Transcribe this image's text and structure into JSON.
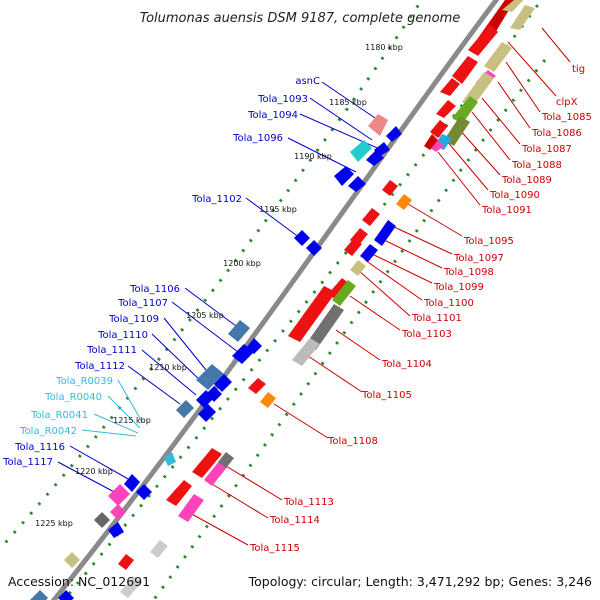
{
  "title": "Tolumonas auensis DSM 9187, complete genome",
  "accession": "Accession: NC_012691",
  "topology_info": "Topology: circular; Length: 3,471,292 bp; Genes: 3,246",
  "colors": {
    "left_label": "#0000cc",
    "right_label": "#cc0000",
    "rna_label": "#33bbdd",
    "backbone": "#888888",
    "tick_dots": "#2a8a2a"
  },
  "kbp_ticks": [
    "1180 kbp",
    "1185 kbp",
    "1190 kbp",
    "1195 kbp",
    "1200 kbp",
    "1205 kbp",
    "1210 kbp",
    "1215 kbp",
    "1220 kbp",
    "1225 kbp"
  ],
  "left_labels": [
    "asnC",
    "Tola_1093",
    "Tola_1094",
    "Tola_1096",
    "Tola_1102",
    "Tola_1106",
    "Tola_1107",
    "Tola_1109",
    "Tola_1110",
    "Tola_1111",
    "Tola_1112",
    "Tola_R0039",
    "Tola_R0040",
    "Tola_R0041",
    "Tola_R0042",
    "Tola_1116",
    "Tola_1117"
  ],
  "right_labels": [
    "tig",
    "clpX",
    "Tola_1085",
    "Tola_1086",
    "Tola_1087",
    "Tola_1088",
    "Tola_1089",
    "Tola_1090",
    "Tola_1091",
    "Tola_1095",
    "Tola_1097",
    "Tola_1098",
    "Tola_1099",
    "Tola_1100",
    "Tola_1101",
    "Tola_1103",
    "Tola_1104",
    "Tola_1105",
    "Tola_1108",
    "Tola_1113",
    "Tola_1114",
    "Tola_1115"
  ]
}
